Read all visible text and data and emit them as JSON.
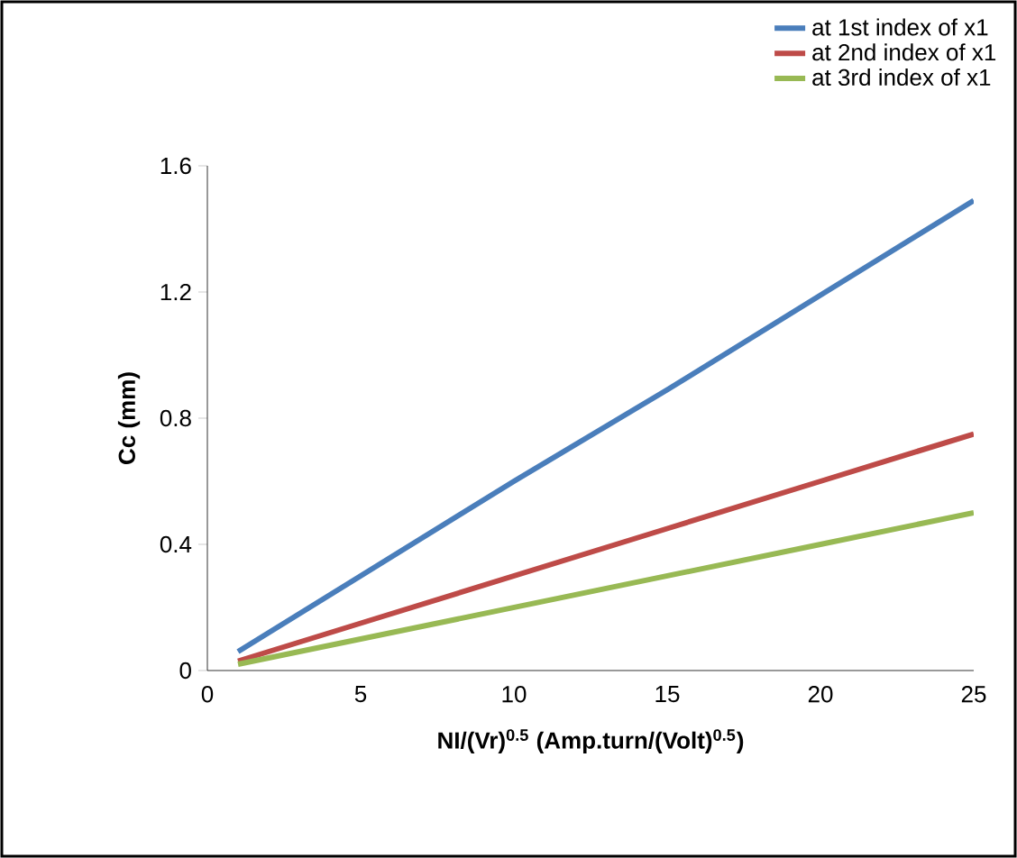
{
  "chart_data": {
    "type": "line",
    "xlabel": "NI/(Vr)$^{0.5}$ (Amp.turn/(Volt)$^{0.5}$)",
    "ylabel": "Cc  (mm)",
    "x": [
      1,
      5,
      10,
      15,
      20,
      25
    ],
    "series": [
      {
        "name": "at 1st index of  x1",
        "color": "#4a7ebb",
        "values": [
          0.06,
          0.3,
          0.6,
          0.89,
          1.19,
          1.49
        ]
      },
      {
        "name": "at 2nd index of x1",
        "color": "#be4b48",
        "values": [
          0.03,
          0.15,
          0.3,
          0.45,
          0.6,
          0.75
        ]
      },
      {
        "name": "at 3rd index of x1",
        "color": "#98b954",
        "values": [
          0.02,
          0.1,
          0.2,
          0.3,
          0.4,
          0.5
        ]
      }
    ],
    "xlim": [
      0,
      25
    ],
    "ylim": [
      0,
      1.6
    ],
    "xticks": [
      0,
      5,
      10,
      15,
      20,
      25
    ],
    "yticks": [
      0,
      0.4,
      0.8,
      1.2,
      1.6
    ],
    "legend": "top right",
    "marker": "none",
    "line_style": "solid"
  }
}
